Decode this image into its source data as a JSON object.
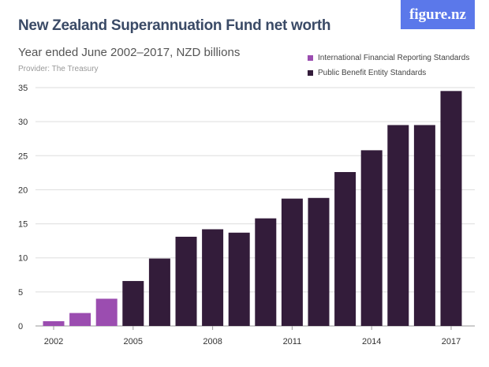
{
  "chart_data": {
    "type": "bar",
    "title": "New Zealand Superannuation Fund net worth",
    "subtitle": "Year ended June 2002–2017, NZD billions",
    "provider": "Provider: The Treasury",
    "categories": [
      "2002",
      "2003",
      "2004",
      "2005",
      "2006",
      "2007",
      "2008",
      "2009",
      "2010",
      "2011",
      "2012",
      "2013",
      "2014",
      "2015",
      "2016",
      "2017"
    ],
    "values": [
      0.7,
      1.9,
      4.0,
      6.6,
      9.9,
      13.1,
      14.2,
      13.7,
      15.8,
      18.7,
      18.8,
      22.6,
      25.8,
      29.5,
      29.5,
      34.5
    ],
    "series_membership": [
      "International Financial Reporting Standards",
      "International Financial Reporting Standards",
      "International Financial Reporting Standards",
      "Public Benefit Entity Standards",
      "Public Benefit Entity Standards",
      "Public Benefit Entity Standards",
      "Public Benefit Entity Standards",
      "Public Benefit Entity Standards",
      "Public Benefit Entity Standards",
      "Public Benefit Entity Standards",
      "Public Benefit Entity Standards",
      "Public Benefit Entity Standards",
      "Public Benefit Entity Standards",
      "Public Benefit Entity Standards",
      "Public Benefit Entity Standards",
      "Public Benefit Entity Standards"
    ],
    "legend": [
      {
        "name": "International Financial Reporting Standards",
        "color": "#9b4db0"
      },
      {
        "name": "Public Benefit Entity Standards",
        "color": "#331c3a"
      }
    ],
    "legend_placement": "top-right",
    "ylim": [
      0,
      35
    ],
    "yticks": [
      0,
      5,
      10,
      15,
      20,
      25,
      30,
      35
    ],
    "xtick_labels": [
      "2002",
      "2005",
      "2008",
      "2011",
      "2014",
      "2017"
    ],
    "grid": true
  },
  "logo": "figure.nz"
}
